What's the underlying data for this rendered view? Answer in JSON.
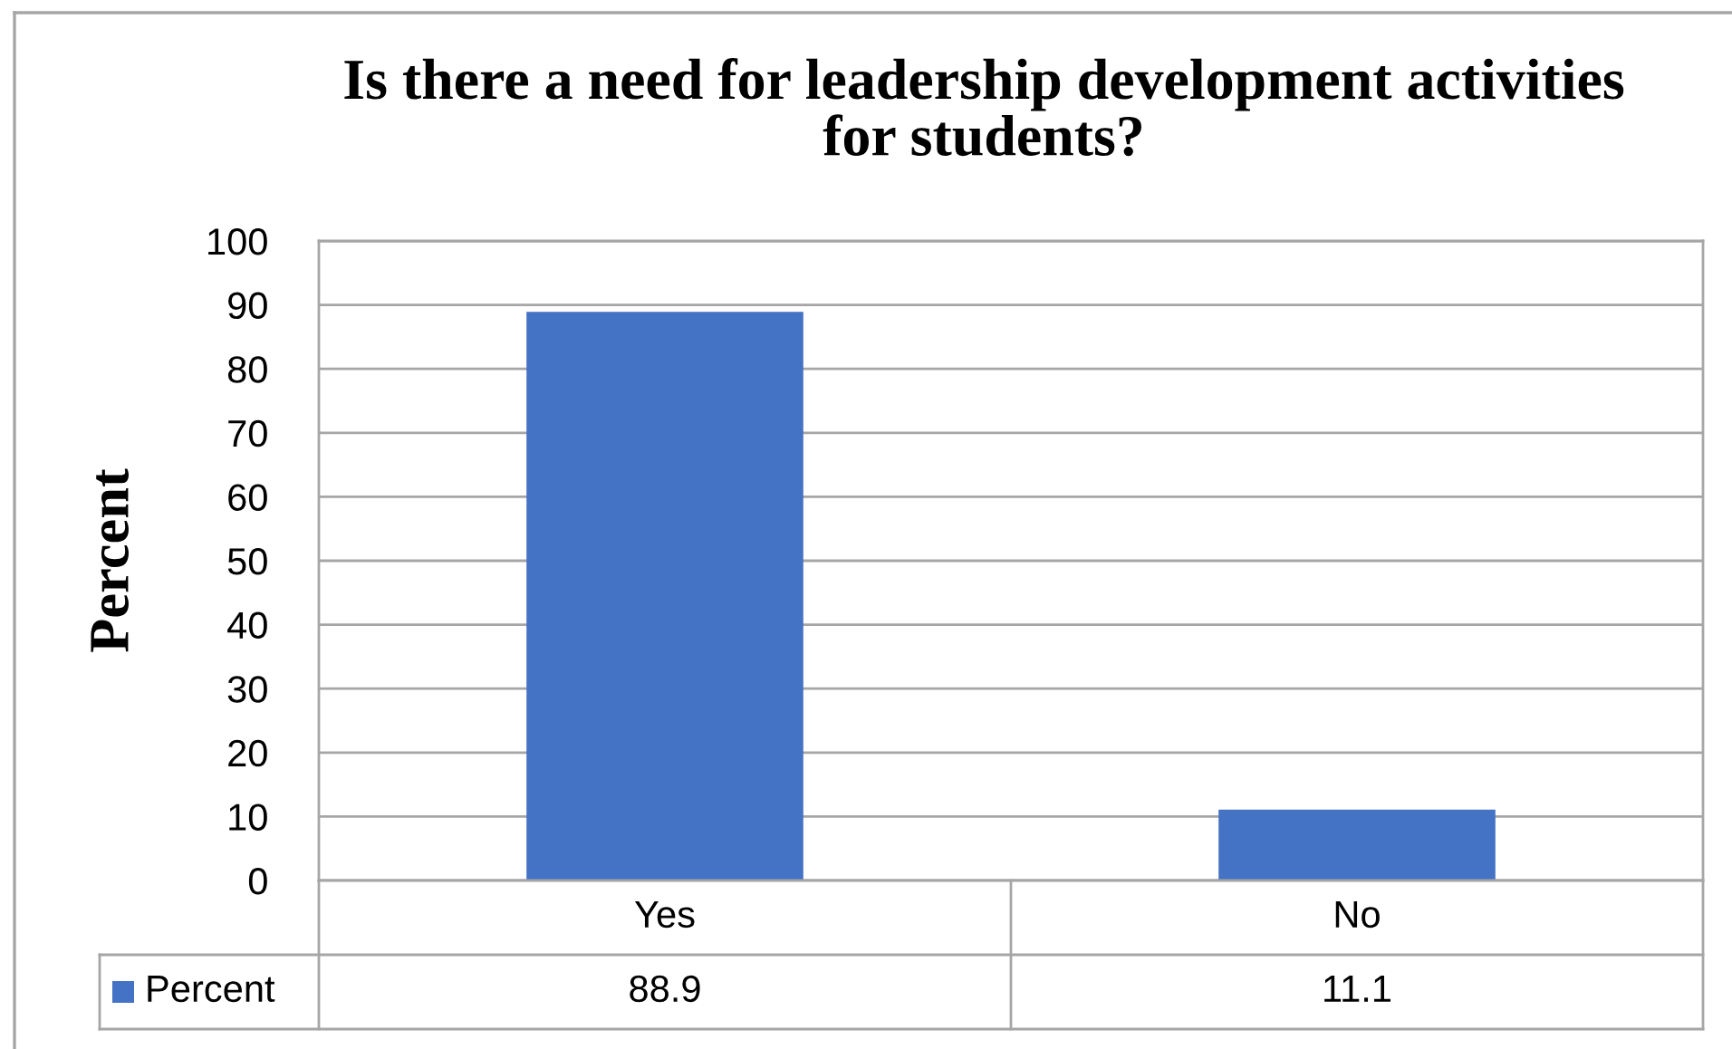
{
  "chart_data": {
    "type": "bar",
    "title": "Is there a need for leadership development activities for students?",
    "ylabel": "Percent",
    "categories": [
      "Yes",
      "No"
    ],
    "series": [
      {
        "name": "Percent",
        "color": "#4472c4",
        "values": [
          88.9,
          11.1
        ]
      }
    ],
    "ylim": [
      0,
      100
    ],
    "yticks": [
      0,
      10,
      20,
      30,
      40,
      50,
      60,
      70,
      80,
      90,
      100
    ],
    "grid": "y",
    "data_labels": true
  }
}
